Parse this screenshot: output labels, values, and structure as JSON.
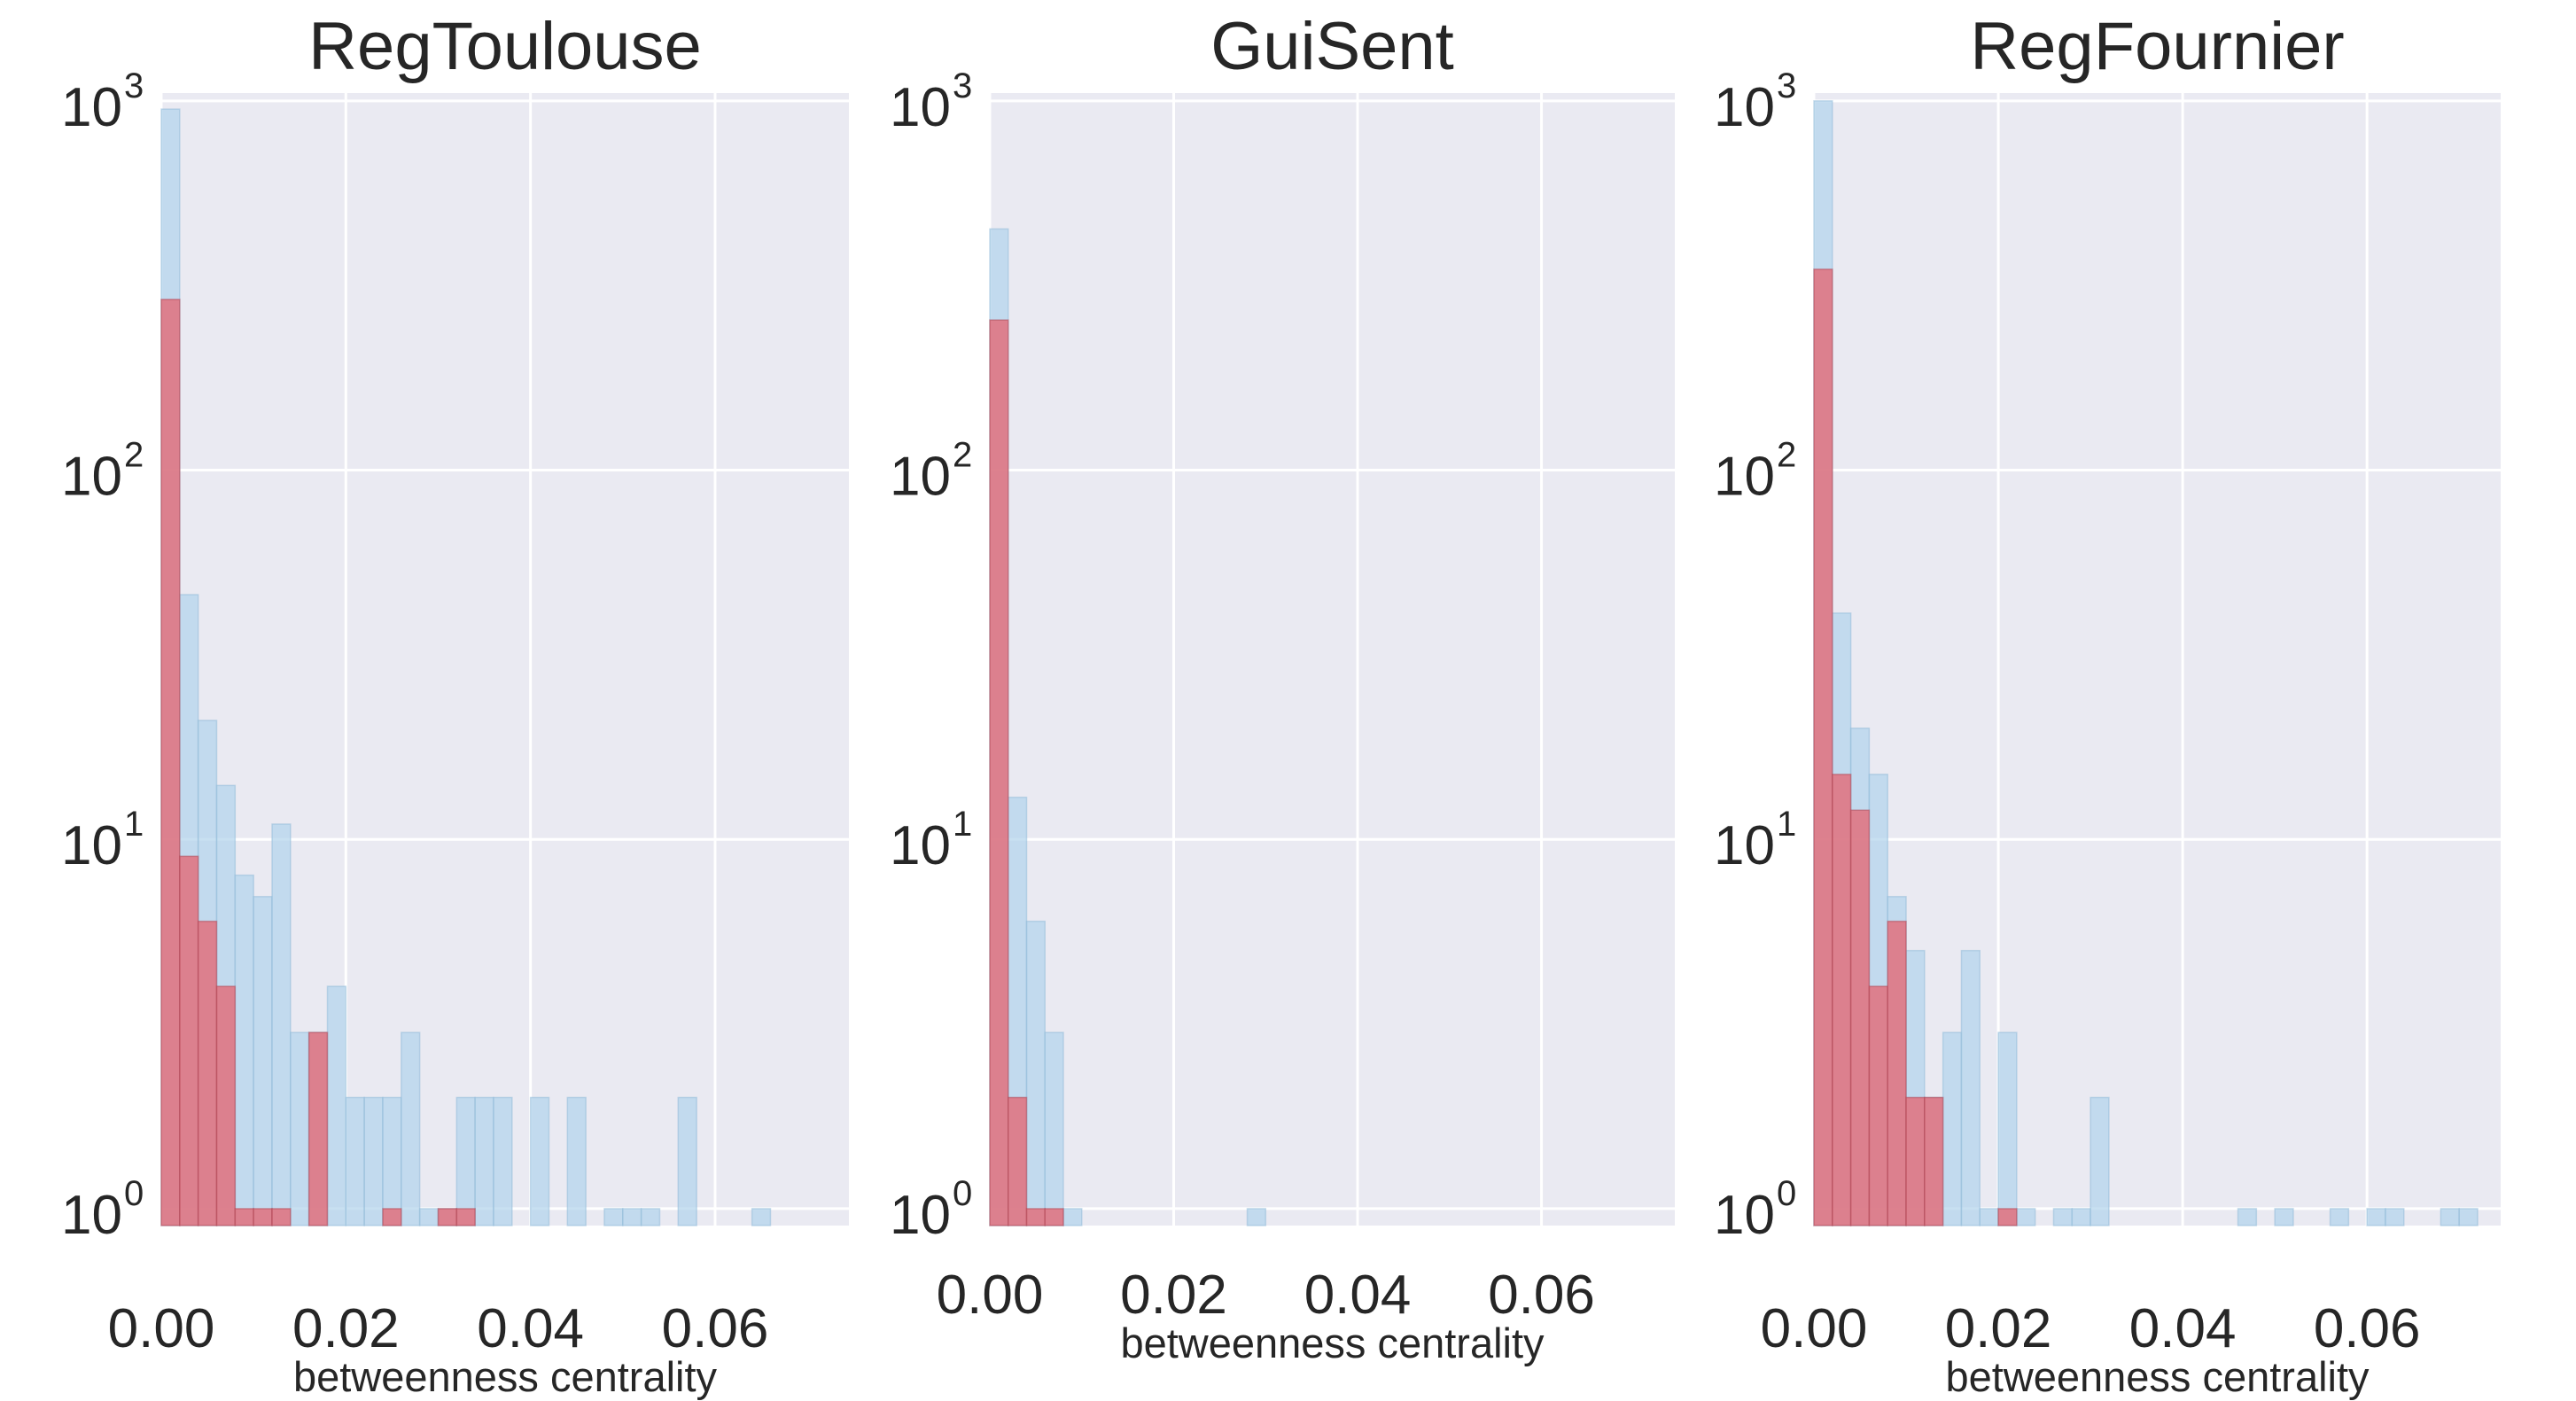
{
  "chart_data": [
    {
      "type": "bar",
      "title": "RegToulouse",
      "xlabel": "betweenness centrality",
      "ylabel": "",
      "yscale": "log",
      "ylim": [
        0.9,
        1050
      ],
      "xlim": [
        0,
        0.0745
      ],
      "bin_width": 0.002,
      "x_ticks": [
        "0.00",
        "0.02",
        "0.04",
        "0.06"
      ],
      "x_tick_values": [
        0,
        0.02,
        0.04,
        0.06
      ],
      "y_ticks": [
        1,
        10,
        100,
        1000
      ],
      "y_tick_labels": [
        [
          "10",
          "0"
        ],
        [
          "10",
          "1"
        ],
        [
          "10",
          "2"
        ],
        [
          "10",
          "3"
        ]
      ],
      "grid": true,
      "series": [
        {
          "color": "#b3d4ec",
          "bin_starts": [
            0,
            0.002,
            0.004,
            0.006,
            0.008,
            0.01,
            0.012,
            0.014,
            0.016,
            0.018,
            0.02,
            0.022,
            0.024,
            0.026,
            0.028,
            0.03,
            0.032,
            0.034,
            0.036,
            0.038,
            0.04,
            0.042,
            0.044,
            0.046,
            0.048,
            0.05,
            0.052,
            0.054,
            0.056,
            0.058,
            0.06,
            0.062,
            0.064
          ],
          "values": [
            950,
            46,
            21,
            14,
            8,
            7,
            11,
            3,
            3,
            4,
            2,
            2,
            2,
            3,
            1,
            1,
            2,
            2,
            2,
            0,
            2,
            0,
            2,
            0,
            1,
            1,
            1,
            0,
            2,
            0,
            0,
            0,
            1
          ]
        },
        {
          "color": "#e0707c",
          "bin_starts": [
            0,
            0.002,
            0.004,
            0.006,
            0.008,
            0.01,
            0.012,
            0.014,
            0.016,
            0.018,
            0.02,
            0.022,
            0.024,
            0.026,
            0.028,
            0.03,
            0.032
          ],
          "values": [
            290,
            9,
            6,
            4,
            1,
            1,
            1,
            0,
            3,
            0,
            0,
            0,
            1,
            0,
            0,
            1,
            1
          ]
        }
      ]
    },
    {
      "type": "bar",
      "title": "GuiSent",
      "xlabel": "betweenness centrality",
      "ylabel": "",
      "yscale": "log",
      "ylim": [
        0.9,
        1050
      ],
      "xlim": [
        0,
        0.0745
      ],
      "bin_width": 0.002,
      "x_ticks": [
        "0.00",
        "0.02",
        "0.04",
        "0.06"
      ],
      "x_tick_values": [
        0,
        0.02,
        0.04,
        0.06
      ],
      "y_ticks": [
        1,
        10,
        100,
        1000
      ],
      "y_tick_labels": [
        [
          "10",
          "0"
        ],
        [
          "10",
          "1"
        ],
        [
          "10",
          "2"
        ],
        [
          "10",
          "3"
        ]
      ],
      "grid": true,
      "series": [
        {
          "color": "#b3d4ec",
          "bin_starts": [
            0,
            0.002,
            0.004,
            0.006,
            0.008,
            0.028
          ],
          "values": [
            450,
            13,
            6,
            3,
            1,
            1
          ]
        },
        {
          "color": "#e0707c",
          "bin_starts": [
            0,
            0.002,
            0.004,
            0.006
          ],
          "values": [
            255,
            2,
            1,
            1
          ]
        }
      ]
    },
    {
      "type": "bar",
      "title": "RegFournier",
      "xlabel": "betweenness centrality",
      "ylabel": "",
      "yscale": "log",
      "ylim": [
        0.9,
        1050
      ],
      "xlim": [
        0,
        0.0745
      ],
      "bin_width": 0.002,
      "x_ticks": [
        "0.00",
        "0.02",
        "0.04",
        "0.06"
      ],
      "x_tick_values": [
        0,
        0.02,
        0.04,
        0.06
      ],
      "y_ticks": [
        1,
        10,
        100,
        1000
      ],
      "y_tick_labels": [
        [
          "10",
          "0"
        ],
        [
          "10",
          "1"
        ],
        [
          "10",
          "2"
        ],
        [
          "10",
          "3"
        ]
      ],
      "grid": true,
      "series": [
        {
          "color": "#b3d4ec",
          "bin_starts": [
            0,
            0.002,
            0.004,
            0.006,
            0.008,
            0.01,
            0.012,
            0.014,
            0.016,
            0.018,
            0.02,
            0.022,
            0.024,
            0.026,
            0.028,
            0.03,
            0.046,
            0.05,
            0.056,
            0.06,
            0.062,
            0.068,
            0.07
          ],
          "values": [
            1000,
            41,
            20,
            15,
            7,
            5,
            2,
            3,
            5,
            1,
            3,
            1,
            0,
            1,
            1,
            2,
            1,
            1,
            1,
            1,
            1,
            1,
            1
          ]
        },
        {
          "color": "#e0707c",
          "bin_starts": [
            0,
            0.002,
            0.004,
            0.006,
            0.008,
            0.01,
            0.012,
            0.02
          ],
          "values": [
            350,
            15,
            12,
            4,
            6,
            2,
            2,
            1
          ]
        }
      ]
    }
  ]
}
